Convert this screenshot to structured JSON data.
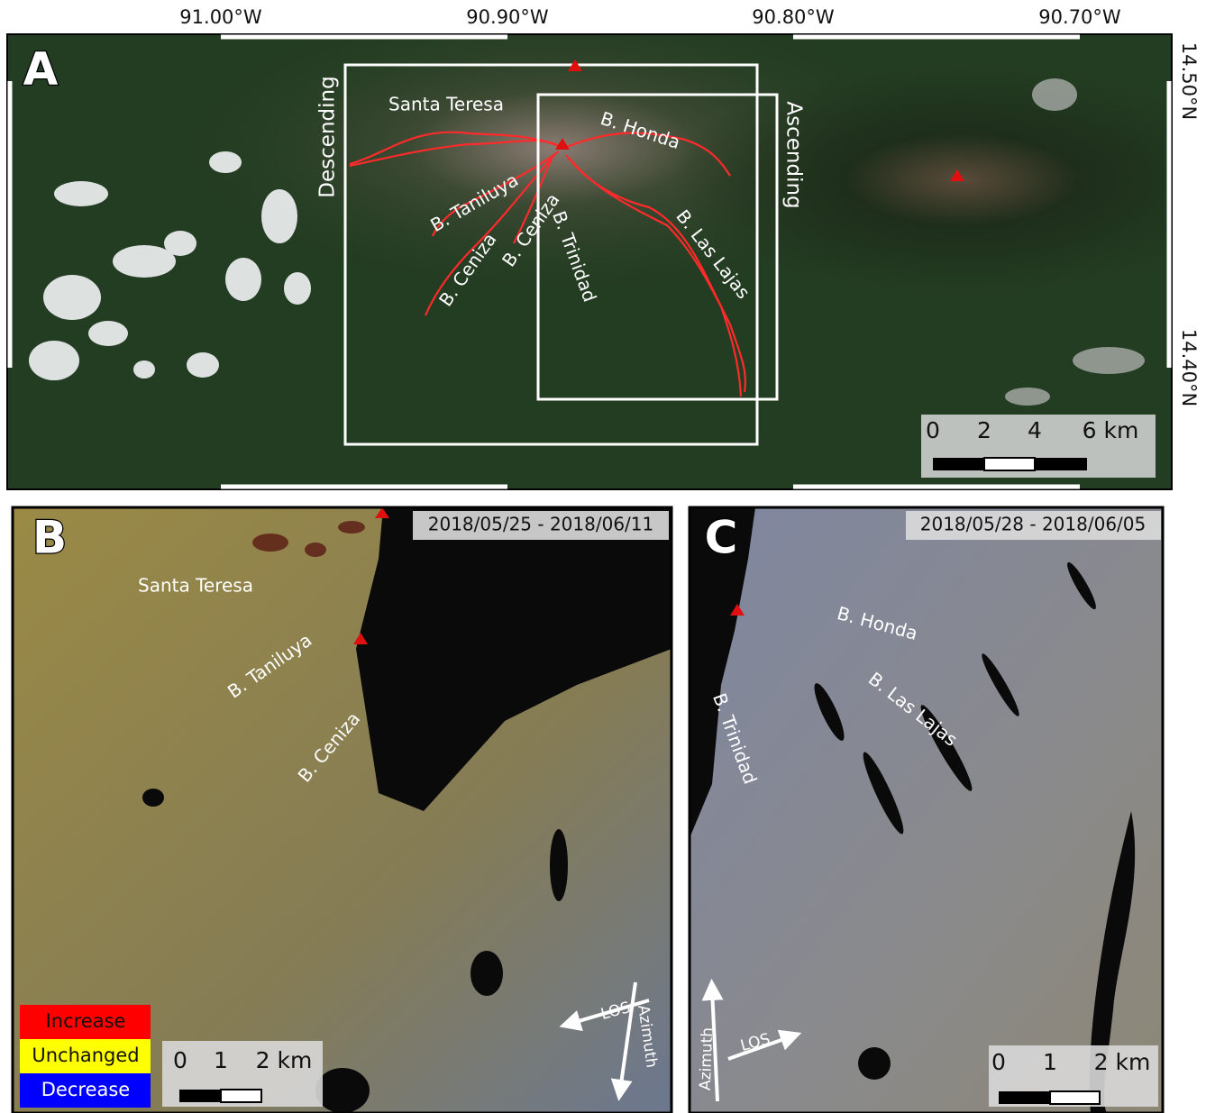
{
  "panel_a": {
    "label": "A",
    "lon_ticks": [
      "91.00°W",
      "90.90°W",
      "90.80°W",
      "90.70°W"
    ],
    "lat_ticks": [
      "14.50°N",
      "14.40°N"
    ],
    "boxes": [
      "Descending",
      "Ascending"
    ],
    "channels": [
      "Santa Teresa",
      "B. Honda",
      "B. Taniluya",
      "B. Ceniza",
      "B. Ceniza",
      "B. Trinidad",
      "B. Las Lajas"
    ],
    "scale": [
      "0",
      "2",
      "4",
      "6 km"
    ]
  },
  "panel_b": {
    "label": "B",
    "date": "2018/05/25 - 2018/06/11",
    "channels": [
      "Santa Teresa",
      "B. Taniluya",
      "B. Ceniza"
    ],
    "legend": [
      "Increase",
      "Unchanged",
      "Decrease"
    ],
    "scale": [
      "0",
      "1",
      "2 km"
    ],
    "arrows": [
      "LOS",
      "Azimuth"
    ]
  },
  "panel_c": {
    "label": "C",
    "date": "2018/05/28 - 2018/06/05",
    "channels": [
      "B. Honda",
      "B. Las Lajas",
      "B. Trinidad"
    ],
    "scale": [
      "0",
      "1",
      "2 km"
    ],
    "arrows": [
      "LOS",
      "Azimuth"
    ]
  }
}
